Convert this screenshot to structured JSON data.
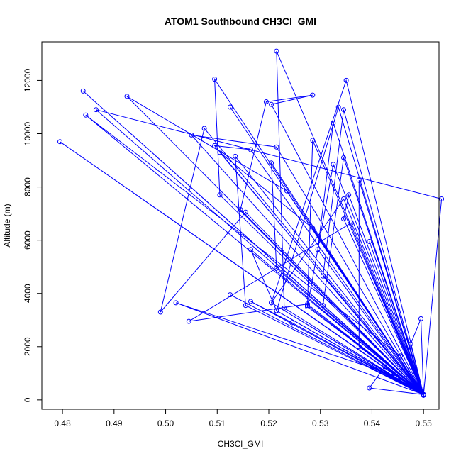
{
  "chart_data": {
    "type": "line",
    "title": "ATOM1 Southbound CH3Cl_GMI",
    "xlabel": "CH3Cl_GMI",
    "ylabel": "Altitude (m)",
    "xlim": [
      0.476,
      0.553
    ],
    "ylim": [
      -350,
      13450
    ],
    "x_ticks": [
      0.48,
      0.49,
      0.5,
      0.51,
      0.52,
      0.53,
      0.54,
      0.55
    ],
    "x_tick_labels": [
      "0.48",
      "0.49",
      "0.50",
      "0.51",
      "0.52",
      "0.53",
      "0.54",
      "0.55"
    ],
    "y_ticks": [
      0,
      2000,
      4000,
      6000,
      8000,
      10000,
      12000
    ],
    "y_tick_labels": [
      "0",
      "2000",
      "4000",
      "6000",
      "8000",
      "10000",
      "12000"
    ],
    "grid": false,
    "series": [
      {
        "name": "CH3Cl_GMI",
        "color": "#0000ff",
        "marker": "open-circle",
        "points": [
          [
            0.55,
            180
          ],
          [
            0.484,
            11600
          ],
          [
            0.55,
            200
          ],
          [
            0.4795,
            9700
          ],
          [
            0.55,
            180
          ],
          [
            0.5215,
            13100
          ],
          [
            0.523,
            3450
          ],
          [
            0.55,
            200
          ],
          [
            0.535,
            12000
          ],
          [
            0.5205,
            3650
          ],
          [
            0.55,
            180
          ],
          [
            0.5095,
            12050
          ],
          [
            0.5105,
            7700
          ],
          [
            0.55,
            200
          ],
          [
            0.4845,
            10700
          ],
          [
            0.5455,
            1650
          ],
          [
            0.55,
            180
          ],
          [
            0.4925,
            11400
          ],
          [
            0.5235,
            7850
          ],
          [
            0.55,
            200
          ],
          [
            0.4865,
            10900
          ],
          [
            0.5535,
            7550
          ],
          [
            0.55,
            180
          ],
          [
            0.536,
            6650
          ],
          [
            0.5045,
            2950
          ],
          [
            0.5275,
            3600
          ],
          [
            0.55,
            180
          ],
          [
            0.505,
            9950
          ],
          [
            0.5215,
            9500
          ],
          [
            0.55,
            200
          ],
          [
            0.5125,
            11000
          ],
          [
            0.5125,
            3950
          ],
          [
            0.55,
            180
          ],
          [
            0.5145,
            7150
          ],
          [
            0.5195,
            11200
          ],
          [
            0.5285,
            11450
          ],
          [
            0.5205,
            11100
          ],
          [
            0.55,
            200
          ],
          [
            0.5075,
            10200
          ],
          [
            0.499,
            3300
          ],
          [
            0.5155,
            7050
          ],
          [
            0.55,
            180
          ],
          [
            0.5095,
            9550
          ],
          [
            0.5165,
            9400
          ],
          [
            0.55,
            200
          ],
          [
            0.5135,
            9150
          ],
          [
            0.5155,
            3550
          ],
          [
            0.55,
            180
          ],
          [
            0.5165,
            5650
          ],
          [
            0.5215,
            3350
          ],
          [
            0.55,
            200
          ],
          [
            0.502,
            3650
          ],
          [
            0.5455,
            850
          ],
          [
            0.55,
            180
          ],
          [
            0.5165,
            3700
          ],
          [
            0.5245,
            2900
          ],
          [
            0.55,
            200
          ],
          [
            0.5105,
            9300
          ],
          [
            0.5285,
            6450
          ],
          [
            0.55,
            180
          ],
          [
            0.5345,
            10900
          ],
          [
            0.5305,
            4650
          ],
          [
            0.55,
            200
          ],
          [
            0.5335,
            11000
          ],
          [
            0.5215,
            3350
          ],
          [
            0.55,
            180
          ],
          [
            0.5425,
            1250
          ],
          [
            0.5395,
            450
          ],
          [
            0.55,
            200
          ],
          [
            0.5305,
            3550
          ],
          [
            0.5345,
            9100
          ],
          [
            0.55,
            180
          ],
          [
            0.5325,
            8850
          ],
          [
            0.5275,
            3500
          ],
          [
            0.55,
            200
          ],
          [
            0.5325,
            10400
          ],
          [
            0.5295,
            5650
          ],
          [
            0.55,
            180
          ],
          [
            0.5375,
            8250
          ],
          [
            0.5375,
            2000
          ],
          [
            0.55,
            200
          ],
          [
            0.5495,
            3050
          ],
          [
            0.5475,
            2100
          ],
          [
            0.55,
            180
          ],
          [
            0.5355,
            7700
          ],
          [
            0.5345,
            6800
          ],
          [
            0.55,
            200
          ],
          [
            0.5285,
            9750
          ],
          [
            0.5275,
            3550
          ],
          [
            0.55,
            180
          ],
          [
            0.5345,
            7550
          ],
          [
            0.5205,
            3650
          ],
          [
            0.55,
            200
          ],
          [
            0.5205,
            8900
          ],
          [
            0.5215,
            4950
          ],
          [
            0.55,
            180
          ],
          [
            0.5395,
            5950
          ],
          [
            0.55,
            200
          ]
        ]
      }
    ]
  }
}
